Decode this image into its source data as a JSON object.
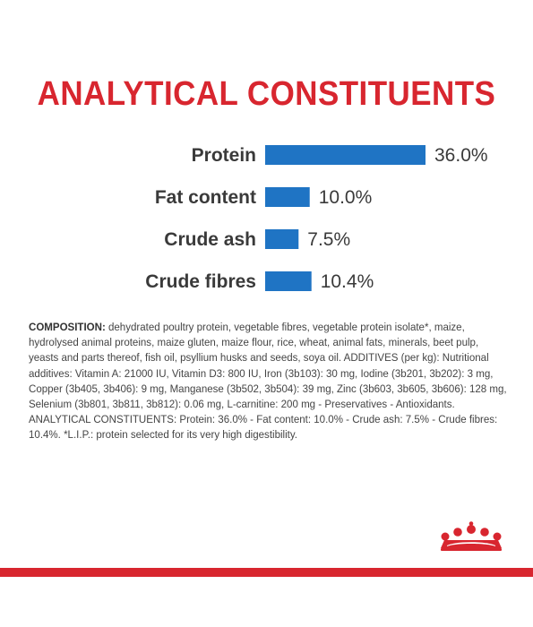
{
  "title": "ANALYTICAL CONSTITUENTS",
  "chart_data": {
    "type": "bar",
    "orientation": "horizontal",
    "categories": [
      "Protein",
      "Fat content",
      "Crude ash",
      "Crude fibres"
    ],
    "values": [
      36.0,
      10.0,
      7.5,
      10.4
    ],
    "value_labels": [
      "36.0%",
      "10.0%",
      "7.5%",
      "10.4%"
    ],
    "unit": "%",
    "xlim": [
      0,
      36.0
    ],
    "bar_color": "#1f74c4",
    "title": "ANALYTICAL CONSTITUENTS",
    "grid": false,
    "legend": "none"
  },
  "composition": {
    "heading": "COMPOSITION:",
    "text": " dehydrated poultry protein, vegetable fibres, vegetable protein isolate*, maize, hydrolysed animal proteins, maize gluten, maize flour, rice, wheat, animal fats, minerals, beet pulp, yeasts and parts thereof, fish oil, psyllium husks and seeds, soya oil. ADDITIVES (per kg): Nutritional additives: Vitamin A: 21000 IU, Vitamin D3: 800 IU, Iron (3b103): 30 mg, Iodine (3b201, 3b202): 3 mg, Copper (3b405, 3b406): 9 mg, Manganese (3b502, 3b504): 39 mg, Zinc (3b603, 3b605, 3b606): 128 mg, Selenium (3b801, 3b811, 3b812): 0.06 mg, L-carnitine: 200 mg - Preservatives - Antioxidants. ANALYTICAL CONSTITUENTS: Protein: 36.0% - Fat content: 10.0% - Crude ash: 7.5% - Crude fibres: 10.4%. *L.I.P.: protein selected for its very high digestibility."
  },
  "colors": {
    "accent": "#d8262f",
    "bar": "#1f74c4",
    "text": "#3a3a3a"
  },
  "logo_icon": "crown-icon"
}
